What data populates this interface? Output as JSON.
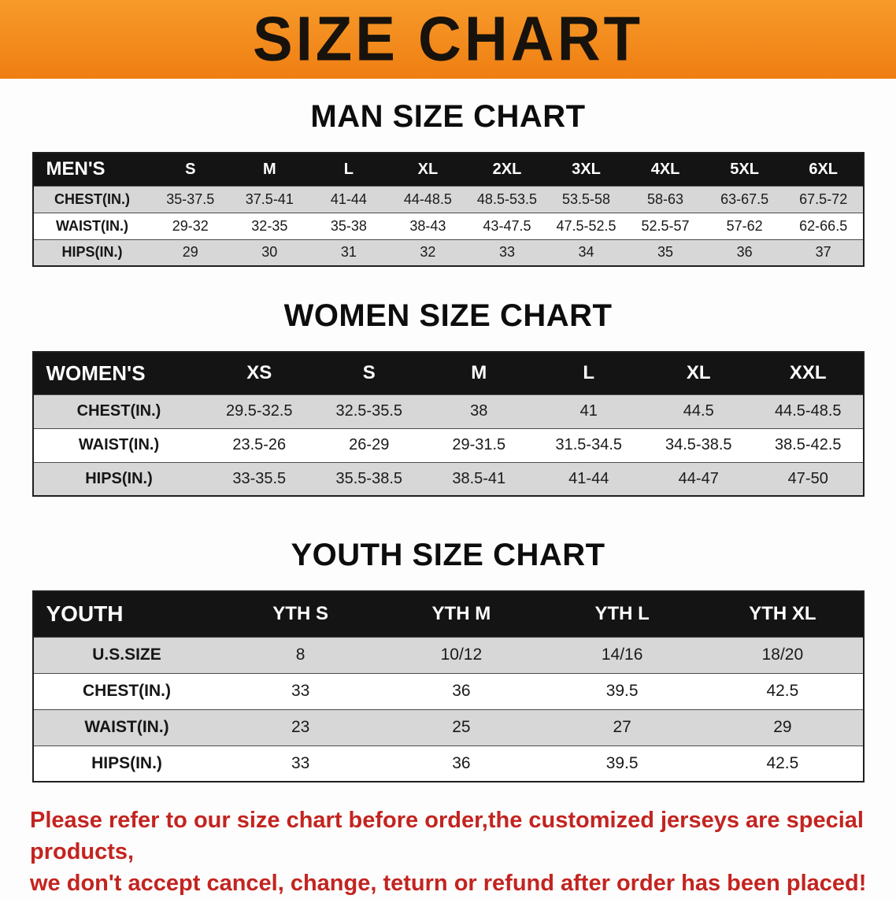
{
  "banner": {
    "title": "SIZE CHART"
  },
  "colors": {
    "banner_bg": "#f28a1e",
    "table_header_bg": "#141414",
    "row_alt_bg": "#d7d7d7",
    "notice_text": "#c32420"
  },
  "men": {
    "heading": "MAN SIZE CHART",
    "table": {
      "header": [
        "MEN'S",
        "S",
        "M",
        "L",
        "XL",
        "2XL",
        "3XL",
        "4XL",
        "5XL",
        "6XL"
      ],
      "rows": [
        [
          "CHEST(IN.)",
          "35-37.5",
          "37.5-41",
          "41-44",
          "44-48.5",
          "48.5-53.5",
          "53.5-58",
          "58-63",
          "63-67.5",
          "67.5-72"
        ],
        [
          "WAIST(IN.)",
          "29-32",
          "32-35",
          "35-38",
          "38-43",
          "43-47.5",
          "47.5-52.5",
          "52.5-57",
          "57-62",
          "62-66.5"
        ],
        [
          "HIPS(IN.)",
          "29",
          "30",
          "31",
          "32",
          "33",
          "34",
          "35",
          "36",
          "37"
        ]
      ]
    }
  },
  "women": {
    "heading": "WOMEN SIZE CHART",
    "table": {
      "header": [
        "WOMEN'S",
        "XS",
        "S",
        "M",
        "L",
        "XL",
        "XXL"
      ],
      "rows": [
        [
          "CHEST(IN.)",
          "29.5-32.5",
          "32.5-35.5",
          "38",
          "41",
          "44.5",
          "44.5-48.5"
        ],
        [
          "WAIST(IN.)",
          "23.5-26",
          "26-29",
          "29-31.5",
          "31.5-34.5",
          "34.5-38.5",
          "38.5-42.5"
        ],
        [
          "HIPS(IN.)",
          "33-35.5",
          "35.5-38.5",
          "38.5-41",
          "41-44",
          "44-47",
          "47-50"
        ]
      ]
    }
  },
  "youth": {
    "heading": "YOUTH SIZE CHART",
    "table": {
      "header": [
        "YOUTH",
        "YTH S",
        "YTH M",
        "YTH L",
        "YTH XL"
      ],
      "rows": [
        [
          "U.S.SIZE",
          "8",
          "10/12",
          "14/16",
          "18/20"
        ],
        [
          "CHEST(IN.)",
          "33",
          "36",
          "39.5",
          "42.5"
        ],
        [
          "WAIST(IN.)",
          "23",
          "25",
          "27",
          "29"
        ],
        [
          "HIPS(IN.)",
          "33",
          "36",
          "39.5",
          "42.5"
        ]
      ]
    }
  },
  "footer": {
    "line1": "Please refer to our size chart before order,the customized jerseys are special products,",
    "line2": "we don't accept cancel, change, teturn or refund after order has been placed!"
  }
}
